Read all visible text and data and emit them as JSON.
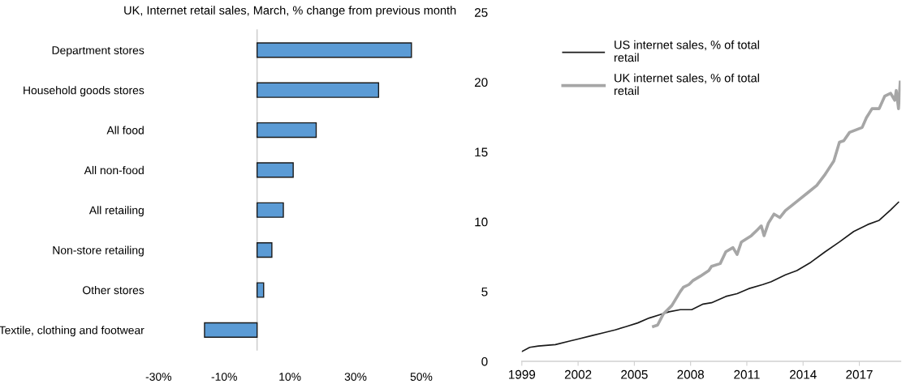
{
  "chart_data": [
    {
      "type": "bar",
      "orientation": "horizontal",
      "title": "UK, Internet retail sales, March, % change from previous month",
      "categories": [
        "Department stores",
        "Household goods stores",
        "All food",
        "All non-food",
        "All retailing",
        "Non-store retailing",
        "Other stores",
        "Textile, clothing and footwear"
      ],
      "values": [
        47,
        37,
        18,
        11,
        8,
        4.5,
        2,
        -16
      ],
      "color": "#5b9bd5",
      "xlim": [
        -30,
        50
      ],
      "xticks": [
        {
          "value": -30,
          "label": "-30%"
        },
        {
          "value": -10,
          "label": "-10%"
        },
        {
          "value": 10,
          "label": "10%"
        },
        {
          "value": 30,
          "label": "30%"
        },
        {
          "value": 50,
          "label": "50%"
        }
      ],
      "grid": false
    },
    {
      "type": "line",
      "legend": "top left",
      "grid": false,
      "xlim": [
        1999,
        2019.2
      ],
      "xticks": [
        1999,
        2002,
        2005,
        2008,
        2011,
        2014,
        2017
      ],
      "ylim": [
        0,
        25
      ],
      "yticks": [
        0,
        5,
        10,
        15,
        20,
        25
      ],
      "series": [
        {
          "name": "US internet sales, % of total\nretail",
          "color": "#1a1a1a",
          "x": [
            1999.0,
            1999.42,
            1999.88,
            2000.79,
            2001.55,
            2002.0,
            2002.76,
            2003.36,
            2003.97,
            2004.58,
            2005.18,
            2005.79,
            2006.39,
            2006.85,
            2007.45,
            2008.06,
            2008.67,
            2009.12,
            2009.88,
            2010.48,
            2011.09,
            2011.85,
            2012.3,
            2013.06,
            2013.67,
            2014.42,
            2015.18,
            2015.94,
            2016.7,
            2017.45,
            2018.06,
            2018.67,
            2019.09
          ],
          "values": [
            0.7,
            1.0,
            1.1,
            1.2,
            1.45,
            1.6,
            1.85,
            2.05,
            2.25,
            2.5,
            2.75,
            3.1,
            3.35,
            3.55,
            3.7,
            3.7,
            4.1,
            4.2,
            4.65,
            4.85,
            5.2,
            5.5,
            5.7,
            6.2,
            6.5,
            7.1,
            7.85,
            8.55,
            9.3,
            9.8,
            10.1,
            10.85,
            11.4
          ]
        },
        {
          "name": "UK internet sales, % of total\nretail",
          "color": "#a6a6a6",
          "x": [
            2006.02,
            2006.24,
            2006.55,
            2007.0,
            2007.45,
            2007.61,
            2007.91,
            2008.14,
            2008.52,
            2008.97,
            2009.12,
            2009.58,
            2009.88,
            2010.26,
            2010.48,
            2010.71,
            2011.24,
            2011.55,
            2011.77,
            2011.92,
            2012.15,
            2012.45,
            2012.76,
            2013.06,
            2013.67,
            2014.27,
            2014.73,
            2015.18,
            2015.64,
            2015.94,
            2016.17,
            2016.48,
            2017.15,
            2017.38,
            2017.68,
            2018.06,
            2018.36,
            2018.67,
            2018.89,
            2018.97,
            2019.09,
            2019.18
          ],
          "values": [
            2.5,
            2.6,
            3.4,
            4.0,
            5.0,
            5.3,
            5.5,
            5.8,
            6.1,
            6.5,
            6.8,
            7.0,
            7.85,
            8.15,
            7.65,
            8.55,
            9.0,
            9.4,
            9.7,
            9.0,
            9.9,
            10.55,
            10.3,
            10.8,
            11.45,
            12.1,
            12.6,
            13.4,
            14.35,
            15.7,
            15.8,
            16.4,
            16.75,
            17.45,
            18.1,
            18.1,
            19.0,
            19.2,
            18.7,
            19.4,
            18.1,
            20.0
          ]
        }
      ]
    }
  ]
}
